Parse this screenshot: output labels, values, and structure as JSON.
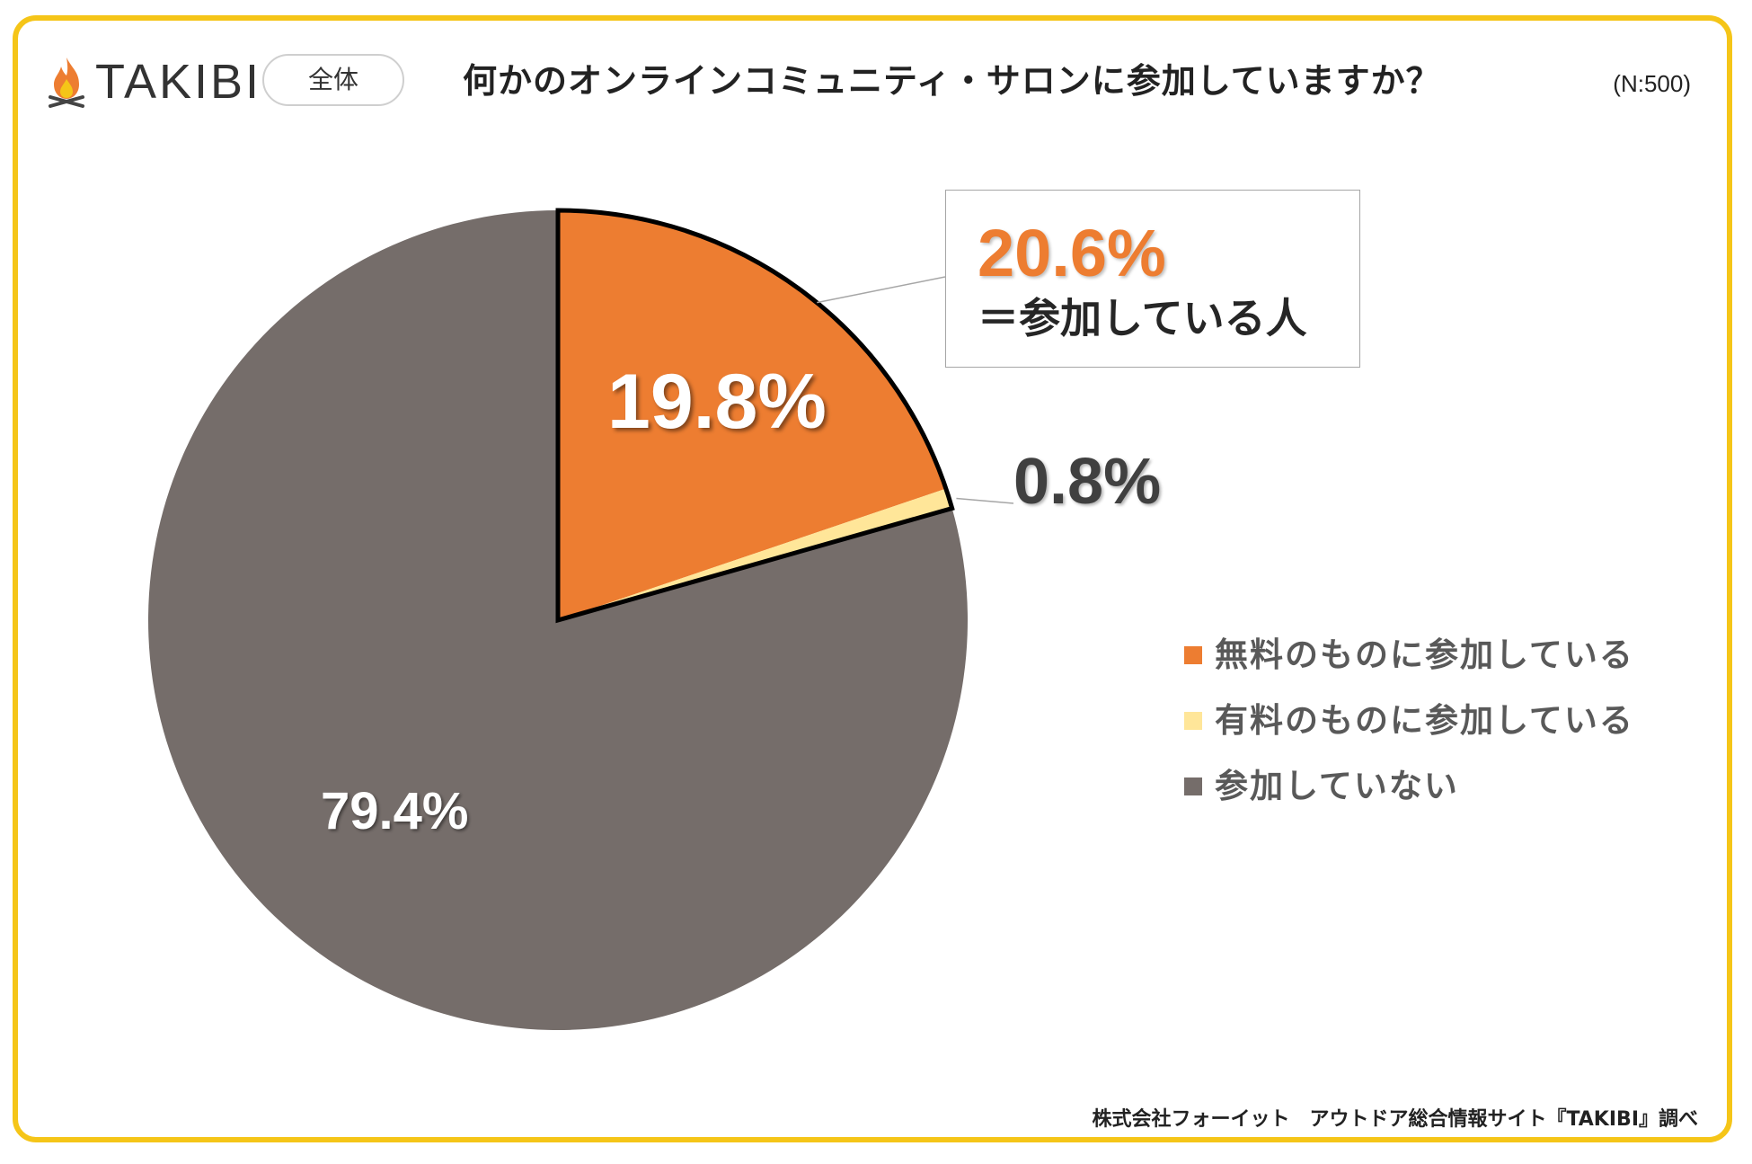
{
  "brand": {
    "name": "TAKIBI",
    "logo_icon": "campfire-icon"
  },
  "segment": {
    "label": "全体"
  },
  "title": "何かのオンラインコミュニティ・サロンに参加していますか？",
  "sample_size": "(N:500)",
  "callout": {
    "value": "20.6%",
    "text": "＝参加している人"
  },
  "chart_data": {
    "type": "pie",
    "title": "何かのオンラインコミュニティ・サロンに参加していますか？",
    "slices": [
      {
        "label": "無料のものに参加している",
        "value": 19.8,
        "display": "19.8%",
        "color": "#ed7d31"
      },
      {
        "label": "有料のものに参加している",
        "value": 0.8,
        "display": "0.8%",
        "color": "#ffe699"
      },
      {
        "label": "参加していない",
        "value": 79.4,
        "display": "79.4%",
        "color": "#756d6a"
      }
    ],
    "start": "12 o'clock, clockwise",
    "legend_position": "right",
    "highlighted_total": {
      "value": 20.6,
      "display": "20.6%",
      "text": "＝参加している人"
    }
  },
  "legend": [
    {
      "label": "無料のものに参加している",
      "color": "#ed7d31"
    },
    {
      "label": "有料のものに参加している",
      "color": "#ffe699"
    },
    {
      "label": "参加していない",
      "color": "#756d6a"
    }
  ],
  "credit": "株式会社フォーイット　アウトドア総合情報サイト『TAKIBI』調べ",
  "colors": {
    "frame": "#f5c518",
    "accent": "#ed7d31"
  }
}
